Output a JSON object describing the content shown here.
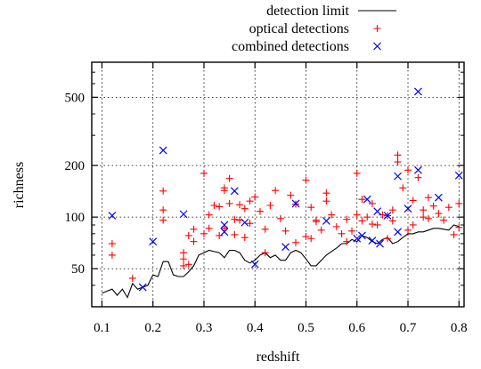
{
  "chart_data": {
    "type": "scatter",
    "xlabel": "redshift",
    "ylabel": "richness",
    "xlim": [
      0.08,
      0.81
    ],
    "ylim": [
      30,
      800
    ],
    "yscale": "log",
    "xticks": [
      0.1,
      0.2,
      0.3,
      0.4,
      0.5,
      0.6,
      0.7,
      0.8
    ],
    "xtick_labels": [
      "0.1",
      "0.2",
      "0.3",
      "0.4",
      "0.5",
      "0.6",
      "0.7",
      "0.8"
    ],
    "yticks": [
      50,
      100,
      200,
      500
    ],
    "ytick_labels": [
      "50",
      "100",
      "200",
      "500"
    ],
    "grid": true,
    "legend_position": "top-center",
    "series": [
      {
        "name": "detection limit",
        "kind": "line",
        "color": "#000000",
        "x": [
          0.1,
          0.11,
          0.12,
          0.13,
          0.14,
          0.15,
          0.16,
          0.17,
          0.18,
          0.19,
          0.2,
          0.21,
          0.22,
          0.23,
          0.24,
          0.25,
          0.26,
          0.27,
          0.28,
          0.29,
          0.3,
          0.31,
          0.32,
          0.33,
          0.34,
          0.35,
          0.36,
          0.37,
          0.38,
          0.39,
          0.4,
          0.41,
          0.42,
          0.43,
          0.44,
          0.45,
          0.46,
          0.47,
          0.48,
          0.49,
          0.5,
          0.51,
          0.52,
          0.53,
          0.54,
          0.55,
          0.56,
          0.57,
          0.58,
          0.59,
          0.6,
          0.61,
          0.62,
          0.63,
          0.64,
          0.65,
          0.66,
          0.67,
          0.68,
          0.69,
          0.7,
          0.71,
          0.72,
          0.73,
          0.74,
          0.75,
          0.76,
          0.77,
          0.78,
          0.79,
          0.8
        ],
        "y": [
          36,
          37,
          38,
          35,
          38,
          34,
          41,
          38,
          39,
          40,
          46,
          45,
          55,
          55,
          46,
          45,
          45,
          48,
          52,
          60,
          62,
          64,
          63,
          62,
          58,
          64,
          64,
          62,
          56,
          54,
          56,
          60,
          62,
          58,
          60,
          56,
          56,
          62,
          64,
          62,
          57,
          52,
          52,
          56,
          60,
          63,
          66,
          70,
          70,
          74,
          72,
          78,
          76,
          72,
          70,
          74,
          76,
          70,
          72,
          76,
          80,
          80,
          82,
          82,
          84,
          86,
          86,
          85,
          84,
          90,
          88
        ]
      },
      {
        "name": "optical detections",
        "kind": "points",
        "marker": "+",
        "color": "#ff0000",
        "x": [
          0.12,
          0.12,
          0.16,
          0.22,
          0.22,
          0.22,
          0.26,
          0.26,
          0.26,
          0.27,
          0.27,
          0.28,
          0.28,
          0.3,
          0.3,
          0.31,
          0.31,
          0.32,
          0.33,
          0.33,
          0.34,
          0.34,
          0.34,
          0.35,
          0.35,
          0.36,
          0.36,
          0.37,
          0.37,
          0.38,
          0.38,
          0.39,
          0.39,
          0.4,
          0.41,
          0.42,
          0.42,
          0.43,
          0.44,
          0.45,
          0.46,
          0.47,
          0.48,
          0.48,
          0.5,
          0.5,
          0.51,
          0.51,
          0.52,
          0.52,
          0.53,
          0.54,
          0.54,
          0.55,
          0.56,
          0.57,
          0.58,
          0.58,
          0.59,
          0.6,
          0.6,
          0.61,
          0.61,
          0.62,
          0.63,
          0.63,
          0.64,
          0.65,
          0.66,
          0.66,
          0.67,
          0.67,
          0.68,
          0.68,
          0.69,
          0.7,
          0.7,
          0.71,
          0.71,
          0.72,
          0.73,
          0.73,
          0.74,
          0.74,
          0.75,
          0.76,
          0.77,
          0.78,
          0.79,
          0.8,
          0.8
        ],
        "y": [
          70,
          60,
          44,
          142,
          110,
          96,
          62,
          57,
          52,
          78,
          53,
          85,
          72,
          180,
          80,
          103,
          86,
          117,
          115,
          78,
          148,
          143,
          86,
          168,
          120,
          97,
          79,
          118,
          96,
          112,
          76,
          124,
          92,
          131,
          108,
          62,
          85,
          117,
          143,
          98,
          83,
          134,
          119,
          71,
          164,
          77,
          114,
          75,
          94,
          96,
          84,
          138,
          124,
          103,
          88,
          80,
          97,
          72,
          83,
          180,
          103,
          127,
          95,
          100,
          120,
          91,
          90,
          103,
          75,
          102,
          110,
          95,
          230,
          210,
          148,
          188,
          84,
          125,
          90,
          170,
          110,
          100,
          130,
          98,
          116,
          105,
          96,
          114,
          79,
          120,
          87
        ]
      },
      {
        "name": "combined detections",
        "kind": "points",
        "marker": "x",
        "color": "#0000ff",
        "x": [
          0.12,
          0.18,
          0.2,
          0.22,
          0.26,
          0.34,
          0.36,
          0.38,
          0.4,
          0.46,
          0.48,
          0.54,
          0.6,
          0.62,
          0.63,
          0.64,
          0.66,
          0.68,
          0.7,
          0.72,
          0.76,
          0.8
        ],
        "y": [
          102,
          39,
          72,
          245,
          104,
          90,
          142,
          93,
          53,
          67,
          120,
          95,
          75,
          127,
          73,
          108,
          102,
          173,
          112,
          188,
          130,
          175
        ]
      },
      {
        "name": "",
        "kind": "points",
        "marker": "x",
        "color": "#0000ff",
        "x": [
          0.34,
          0.61,
          0.645,
          0.68,
          0.72
        ],
        "y": [
          82,
          78,
          70,
          82,
          540
        ]
      }
    ]
  }
}
